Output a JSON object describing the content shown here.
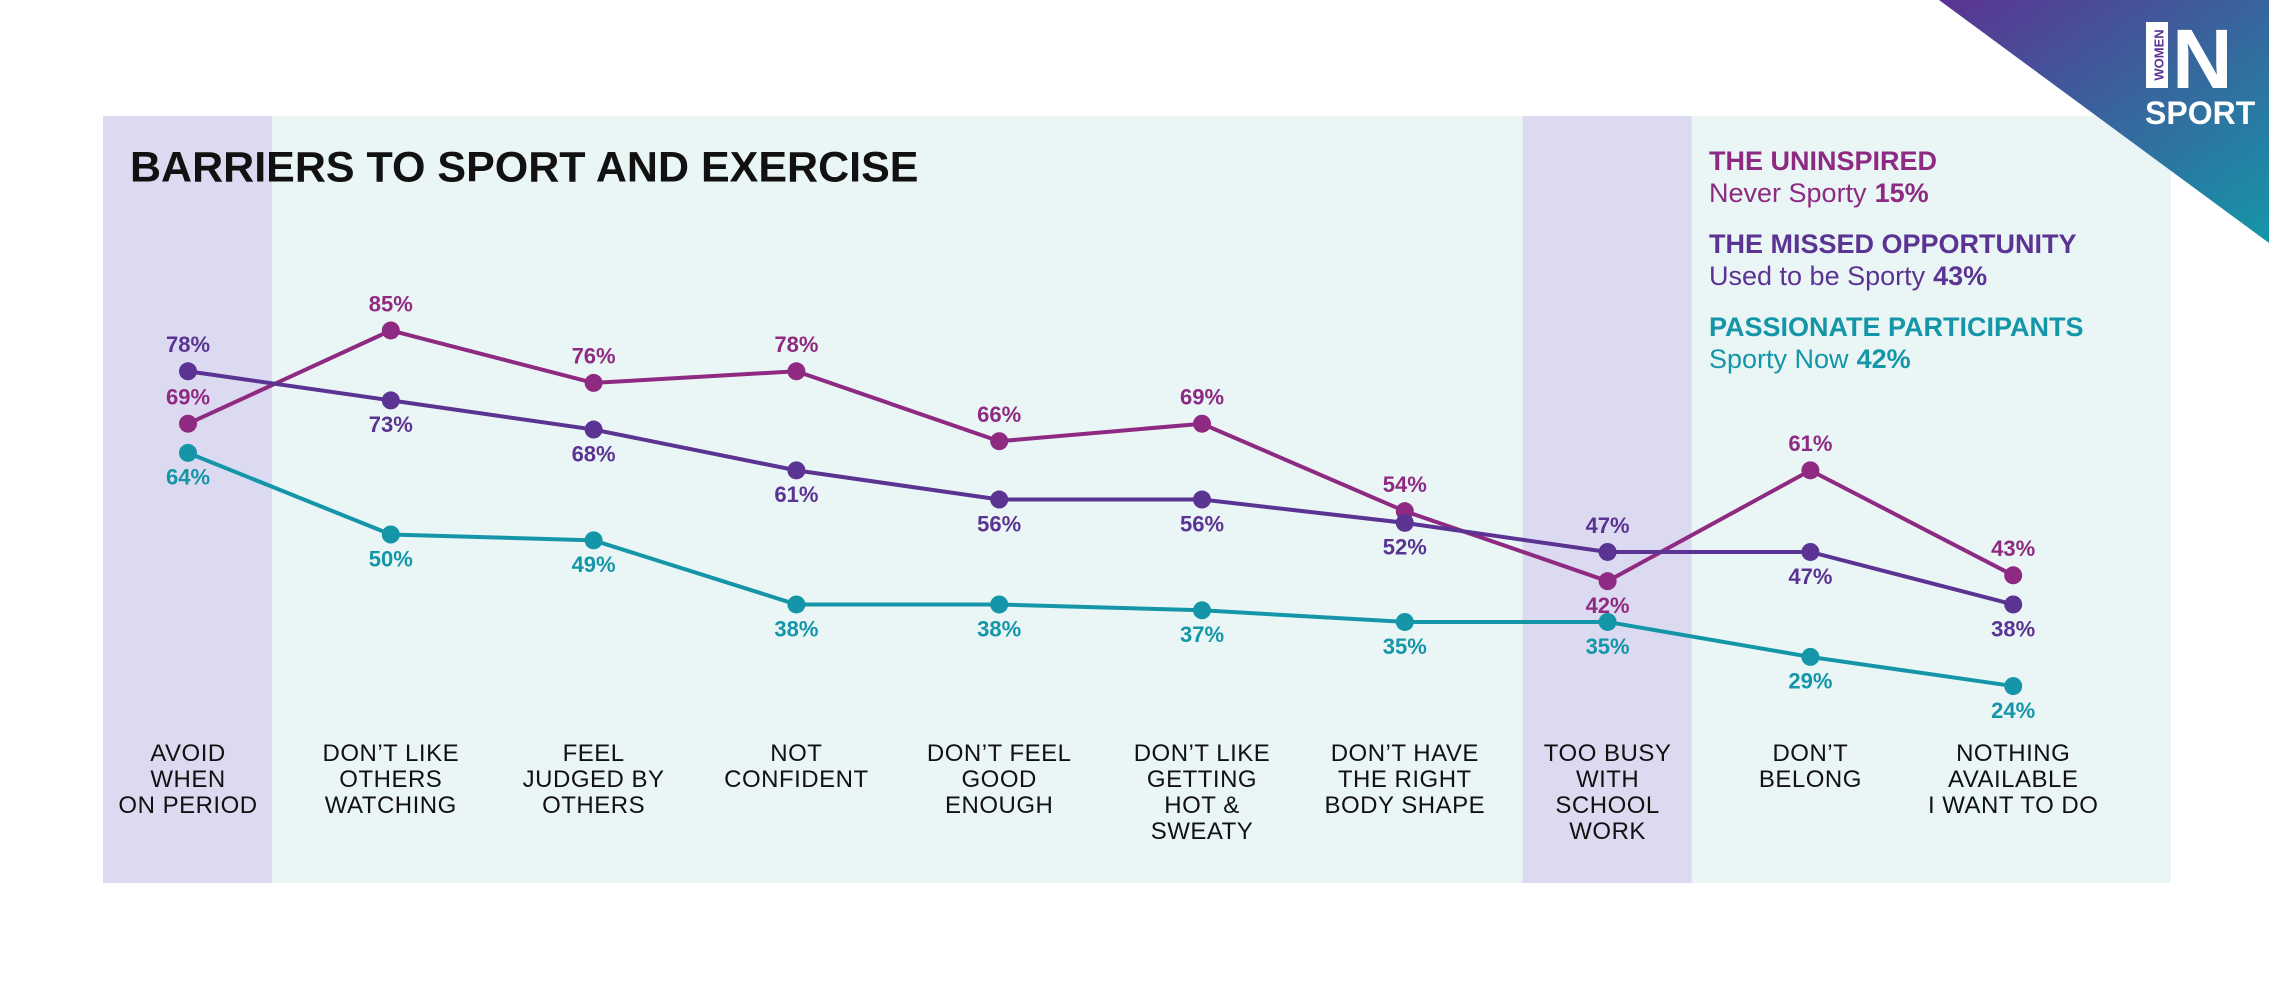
{
  "chart_data": {
    "type": "line",
    "title": "BARRIERS TO SPORT AND EXERCISE",
    "categories": [
      "AVOID\nWHEN\nON PERIOD",
      "DON’T LIKE\nOTHERS\nWATCHING",
      "FEEL\nJUDGED BY\nOTHERS",
      "NOT\nCONFIDENT",
      "DON’T FEEL\nGOOD\nENOUGH",
      "DON’T LIKE\nGETTING\nHOT &\nSWEATY",
      "DON’T HAVE\nTHE RIGHT\nBODY SHAPE",
      "TOO BUSY\nWITH\nSCHOOL\nWORK",
      "DON’T\nBELONG",
      "NOTHING\nAVAILABLE\nI WANT TO DO"
    ],
    "highlight": [
      0,
      7
    ],
    "series": [
      {
        "name": "THE UNINSPIRED",
        "subtitle": "Never Sporty",
        "share": "15%",
        "color": "#8e2a82",
        "values": [
          69,
          85,
          76,
          78,
          66,
          69,
          54,
          42,
          61,
          43
        ],
        "value_labels": [
          "69%",
          "85%",
          "76%",
          "78%",
          "66%",
          "69%",
          "54%",
          "42%",
          "61%",
          "43%"
        ]
      },
      {
        "name": "THE MISSED OPPORTUNITY",
        "subtitle": "Used to be Sporty",
        "share": "43%",
        "color": "#5b3393",
        "values": [
          78,
          73,
          68,
          61,
          56,
          56,
          52,
          47,
          47,
          38
        ],
        "value_labels": [
          "78%",
          "73%",
          "68%",
          "61%",
          "56%",
          "56%",
          "52%",
          "47%",
          "47%",
          "38%"
        ]
      },
      {
        "name": "PASSIONATE PARTICIPANTS",
        "subtitle": "Sporty Now",
        "share": "42%",
        "color": "#1596a8",
        "values": [
          64,
          50,
          49,
          38,
          38,
          37,
          35,
          35,
          29,
          24
        ],
        "value_labels": [
          "64%",
          "50%",
          "49%",
          "38%",
          "38%",
          "37%",
          "35%",
          "35%",
          "29%",
          "24%"
        ]
      }
    ],
    "logo": {
      "small": "WOMEN",
      "big": "N",
      "bottom": "SPORT"
    }
  }
}
